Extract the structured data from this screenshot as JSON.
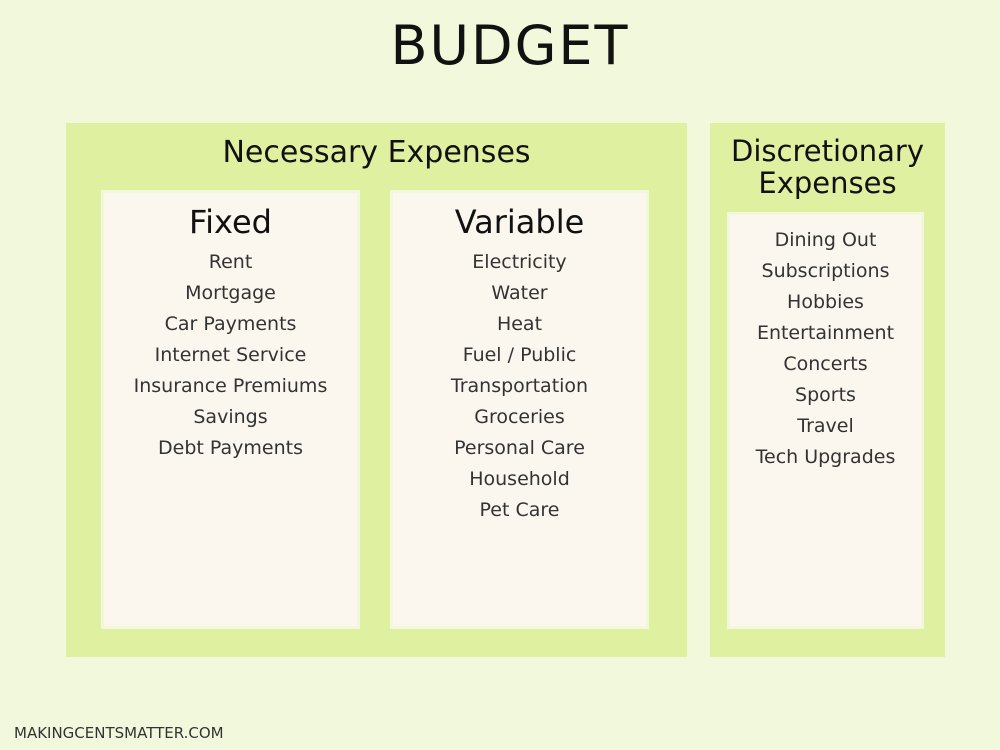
{
  "title": "BUDGET",
  "necessary": {
    "title": "Necessary Expenses",
    "columns": [
      {
        "title": "Fixed",
        "items": [
          "Rent",
          "Mortgage",
          "Car Payments",
          "Internet Service",
          "Insurance Premiums",
          "Savings",
          "Debt Payments"
        ]
      },
      {
        "title": "Variable",
        "items": [
          "Electricity",
          "Water",
          "Heat",
          "Fuel / Public",
          "Transportation",
          "Groceries",
          "Personal Care",
          "Household",
          "Pet Care"
        ]
      }
    ]
  },
  "discretionary": {
    "title": "Discretionary Expenses",
    "items": [
      "Dining Out",
      "Subscriptions",
      "Hobbies",
      "Entertainment",
      "Concerts",
      "Sports",
      "Travel",
      "Tech Upgrades"
    ]
  },
  "footer": "MAKINGCENTSMATTER.COM"
}
